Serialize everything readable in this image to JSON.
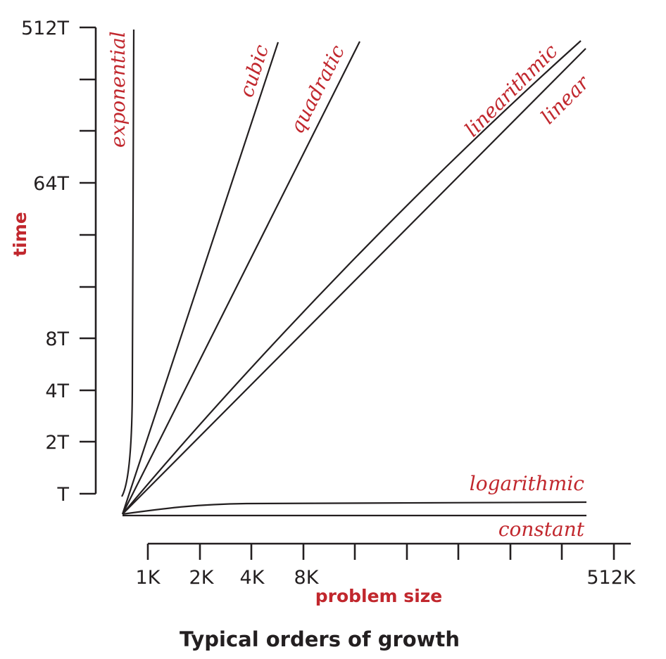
{
  "chart_data": {
    "type": "line",
    "title": "Typical orders of growth",
    "xlabel": "problem size",
    "ylabel": "time",
    "x_scale": "log2",
    "y_scale": "log2",
    "x_tick_labels": [
      "1K",
      "2K",
      "4K",
      "8K",
      "512K"
    ],
    "y_tick_labels": [
      "512T",
      "64T",
      "8T",
      "4T",
      "2T",
      "T"
    ],
    "grid": false,
    "legend": "none (labels placed next to curves)",
    "series": [
      {
        "name": "exponential",
        "order": "2^N"
      },
      {
        "name": "cubic",
        "order": "N^3"
      },
      {
        "name": "quadratic",
        "order": "N^2"
      },
      {
        "name": "linearithmic",
        "order": "N log N"
      },
      {
        "name": "linear",
        "order": "N"
      },
      {
        "name": "logarithmic",
        "order": "log N"
      },
      {
        "name": "constant",
        "order": "1"
      }
    ]
  },
  "colors": {
    "accent": "#c1272d",
    "ink": "#231f20"
  }
}
